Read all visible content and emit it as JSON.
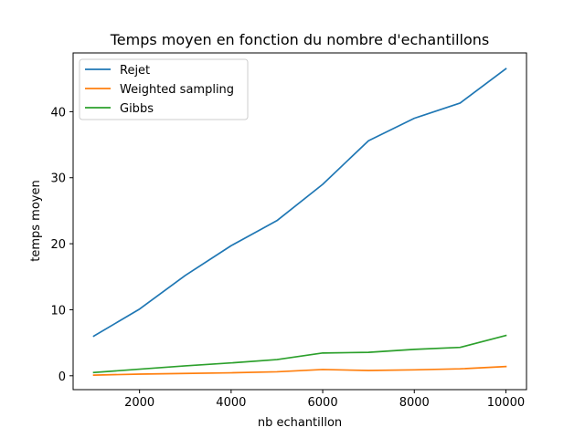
{
  "chart_data": {
    "type": "line",
    "title": "Temps moyen en fonction du nombre d'echantillons",
    "xlabel": "nb echantillon",
    "ylabel": "temps moyen",
    "x": [
      1000,
      2000,
      3000,
      4000,
      5000,
      6000,
      7000,
      8000,
      9000,
      10000
    ],
    "xlim": [
      550,
      10450
    ],
    "ylim": [
      -2.1,
      48.9
    ],
    "xticks": [
      2000,
      4000,
      6000,
      8000,
      10000
    ],
    "yticks": [
      0,
      10,
      20,
      30,
      40
    ],
    "grid": false,
    "legend_position": "top-left",
    "series": [
      {
        "name": "Rejet",
        "color": "#1f77b4",
        "values": [
          6.0,
          10.1,
          15.2,
          19.7,
          23.5,
          29.0,
          35.6,
          39.0,
          41.3,
          46.5
        ]
      },
      {
        "name": "Weighted sampling",
        "color": "#ff7f0e",
        "values": [
          0.1,
          0.25,
          0.35,
          0.45,
          0.6,
          0.95,
          0.8,
          0.9,
          1.05,
          1.4
        ]
      },
      {
        "name": "Gibbs",
        "color": "#2ca02c",
        "values": [
          0.5,
          1.0,
          1.5,
          1.95,
          2.45,
          3.45,
          3.55,
          4.0,
          4.3,
          6.1
        ]
      }
    ]
  }
}
